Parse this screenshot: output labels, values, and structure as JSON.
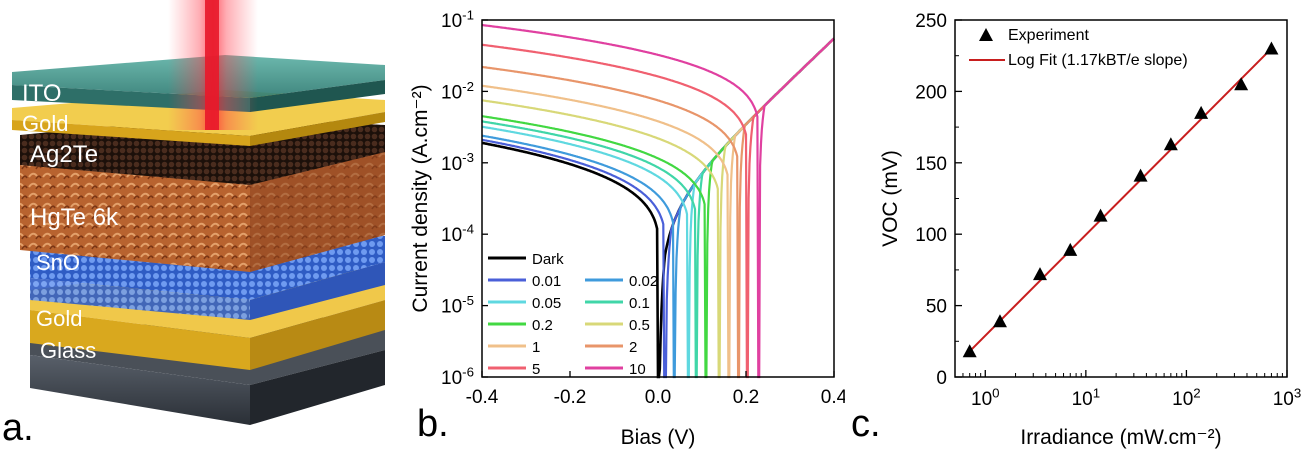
{
  "panels": {
    "a": {
      "label": "a.",
      "layers": [
        "ITO",
        "Gold",
        "Ag2Te",
        "HgTe 6k",
        "SnO",
        "Gold",
        "Glass"
      ]
    },
    "b": {
      "label": "b."
    },
    "c": {
      "label": "c."
    }
  },
  "colors": {
    "ito": "#3f8f86",
    "gold": "#e4b62a",
    "ag2te": "#2b1a12",
    "hgte": "#b8632f",
    "sno": "#3f6ed8",
    "glass": "#3b4149",
    "laser": "#e8182a",
    "fit_line": "#c81e1e"
  },
  "chart_data": [
    {
      "type": "line",
      "panel": "b",
      "xlabel": "Bias (V)",
      "ylabel": "Current density (A.cm⁻²)",
      "x_ticks": [
        "-0.4",
        "-0.2",
        "0.0",
        "0.2",
        "0.4"
      ],
      "y_ticks": [
        "10-6",
        "10-5",
        "10-4",
        "10-3",
        "10-2",
        "10-1"
      ],
      "xlim": [
        -0.4,
        0.4
      ],
      "ylim": [
        1e-06,
        0.1
      ],
      "y_scale": "log",
      "legend_position": "bottom-left",
      "series": [
        {
          "name": "Dark",
          "color": "#000000",
          "voc": 0.003,
          "jsc": 0,
          "j_at_neg": 0.0019
        },
        {
          "name": "0.01",
          "color": "#4a5fd8",
          "voc": 0.018,
          "jsc": 6e-05,
          "j_at_neg": 0.0021
        },
        {
          "name": "0.02",
          "color": "#3f9bdc",
          "voc": 0.039,
          "jsc": 0.00012,
          "j_at_neg": 0.0024
        },
        {
          "name": "0.05",
          "color": "#5fd8e0",
          "voc": 0.071,
          "jsc": 0.0003,
          "j_at_neg": 0.0032
        },
        {
          "name": "0.1",
          "color": "#40d6a8",
          "voc": 0.089,
          "jsc": 0.0006,
          "j_at_neg": 0.0038
        },
        {
          "name": "0.2",
          "color": "#42d842",
          "voc": 0.111,
          "jsc": 0.0012,
          "j_at_neg": 0.0045
        },
        {
          "name": "0.5",
          "color": "#d8d878",
          "voc": 0.141,
          "jsc": 0.003,
          "j_at_neg": 0.0075
        },
        {
          "name": "1",
          "color": "#f0c08a",
          "voc": 0.163,
          "jsc": 0.006,
          "j_at_neg": 0.012
        },
        {
          "name": "2",
          "color": "#e8956a",
          "voc": 0.185,
          "jsc": 0.012,
          "j_at_neg": 0.022
        },
        {
          "name": "5",
          "color": "#f06070",
          "voc": 0.205,
          "jsc": 0.03,
          "j_at_neg": 0.045
        },
        {
          "name": "10",
          "color": "#e040a0",
          "voc": 0.23,
          "jsc": 0.06,
          "j_at_neg": 0.085
        }
      ]
    },
    {
      "type": "scatter",
      "panel": "c",
      "xlabel": "Irradiance (mW.cm⁻²)",
      "ylabel": "VOC (mV)",
      "x_scale": "log",
      "xlim": [
        0.5,
        1000
      ],
      "ylim": [
        0,
        250
      ],
      "x_ticks": [
        "100",
        "101",
        "102",
        "103"
      ],
      "y_ticks": [
        "0",
        "50",
        "100",
        "150",
        "200",
        "250"
      ],
      "legend_position": "top-left",
      "legend": [
        "Experiment",
        "Log Fit (1.17kBT/e slope)"
      ],
      "x": [
        0.7,
        1.4,
        3.5,
        7,
        14,
        35,
        70,
        140,
        350,
        700
      ],
      "y": [
        18,
        39,
        72,
        89,
        113,
        141,
        163,
        185,
        205,
        230
      ],
      "fit": {
        "x": [
          0.7,
          700
        ],
        "y": [
          18,
          230
        ]
      }
    }
  ]
}
